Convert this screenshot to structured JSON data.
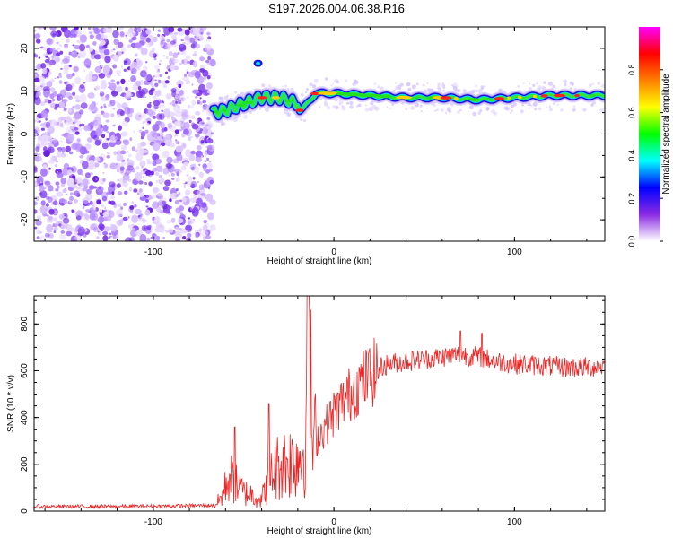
{
  "title": "S197.2026.004.06.38.R16",
  "chart_data": [
    {
      "type": "heatmap",
      "name": "spectrogram",
      "xlabel": "Height of straight line (km)",
      "ylabel": "Frequency (Hz)",
      "xlim": [
        -166,
        150
      ],
      "ylim": [
        -25,
        25
      ],
      "xticks": [
        -100,
        0,
        100
      ],
      "yticks": [
        -20,
        -10,
        0,
        10,
        20
      ],
      "noise_region_x": [
        -166,
        -67
      ],
      "colorbar": {
        "label": "Normalized spectral amplitude",
        "range": [
          0,
          1
        ],
        "ticks": [
          "0.0",
          "0.2",
          "0.4",
          "0.6",
          "0.8"
        ],
        "colors": [
          "#ffffff",
          "#8a2be2",
          "#0000ff",
          "#00ffff",
          "#00ff00",
          "#ffff00",
          "#ff8000",
          "#ff0000",
          "#ff00ff"
        ]
      },
      "ridge": {
        "x": [
          -67,
          -60,
          -50,
          -40,
          -30,
          -20,
          -19,
          -17,
          -10,
          0,
          20,
          40,
          60,
          80,
          100,
          120,
          150
        ],
        "frequency": [
          5,
          5.5,
          7,
          8.5,
          8.5,
          7,
          5.5,
          6,
          9.5,
          9.5,
          9,
          8.5,
          8.5,
          8,
          8.5,
          9,
          9
        ]
      }
    },
    {
      "type": "line",
      "name": "snr",
      "xlabel": "Height of straight line (km)",
      "ylabel": "SNR (10 * v/v)",
      "xlim": [
        -166,
        150
      ],
      "ylim": [
        0,
        920
      ],
      "xticks": [
        -100,
        0,
        100
      ],
      "yticks": [
        0,
        200,
        400,
        600,
        800
      ],
      "series": [
        {
          "name": "SNR",
          "color": "#ee2222",
          "x": [
            -166,
            -120,
            -90,
            -66,
            -62,
            -58,
            -55,
            -50,
            -45,
            -40,
            -36,
            -30,
            -25,
            -20,
            -16,
            -14,
            -13,
            -12,
            -10,
            -5,
            0,
            5,
            10,
            15,
            20,
            25,
            30,
            40,
            50,
            60,
            70,
            80,
            90,
            100,
            110,
            120,
            130,
            140,
            150
          ],
          "y": [
            20,
            20,
            22,
            25,
            60,
            150,
            120,
            80,
            70,
            50,
            140,
            200,
            210,
            230,
            260,
            860,
            600,
            270,
            300,
            360,
            420,
            470,
            510,
            550,
            580,
            610,
            630,
            640,
            650,
            660,
            670,
            660,
            640,
            630,
            625,
            620,
            615,
            615,
            620
          ]
        }
      ],
      "spikes": [
        {
          "x": -55,
          "y": 360
        },
        {
          "x": -36,
          "y": 460
        },
        {
          "x": -14,
          "y": 930
        },
        {
          "x": 70,
          "y": 770
        },
        {
          "x": 82,
          "y": 760
        }
      ]
    }
  ]
}
